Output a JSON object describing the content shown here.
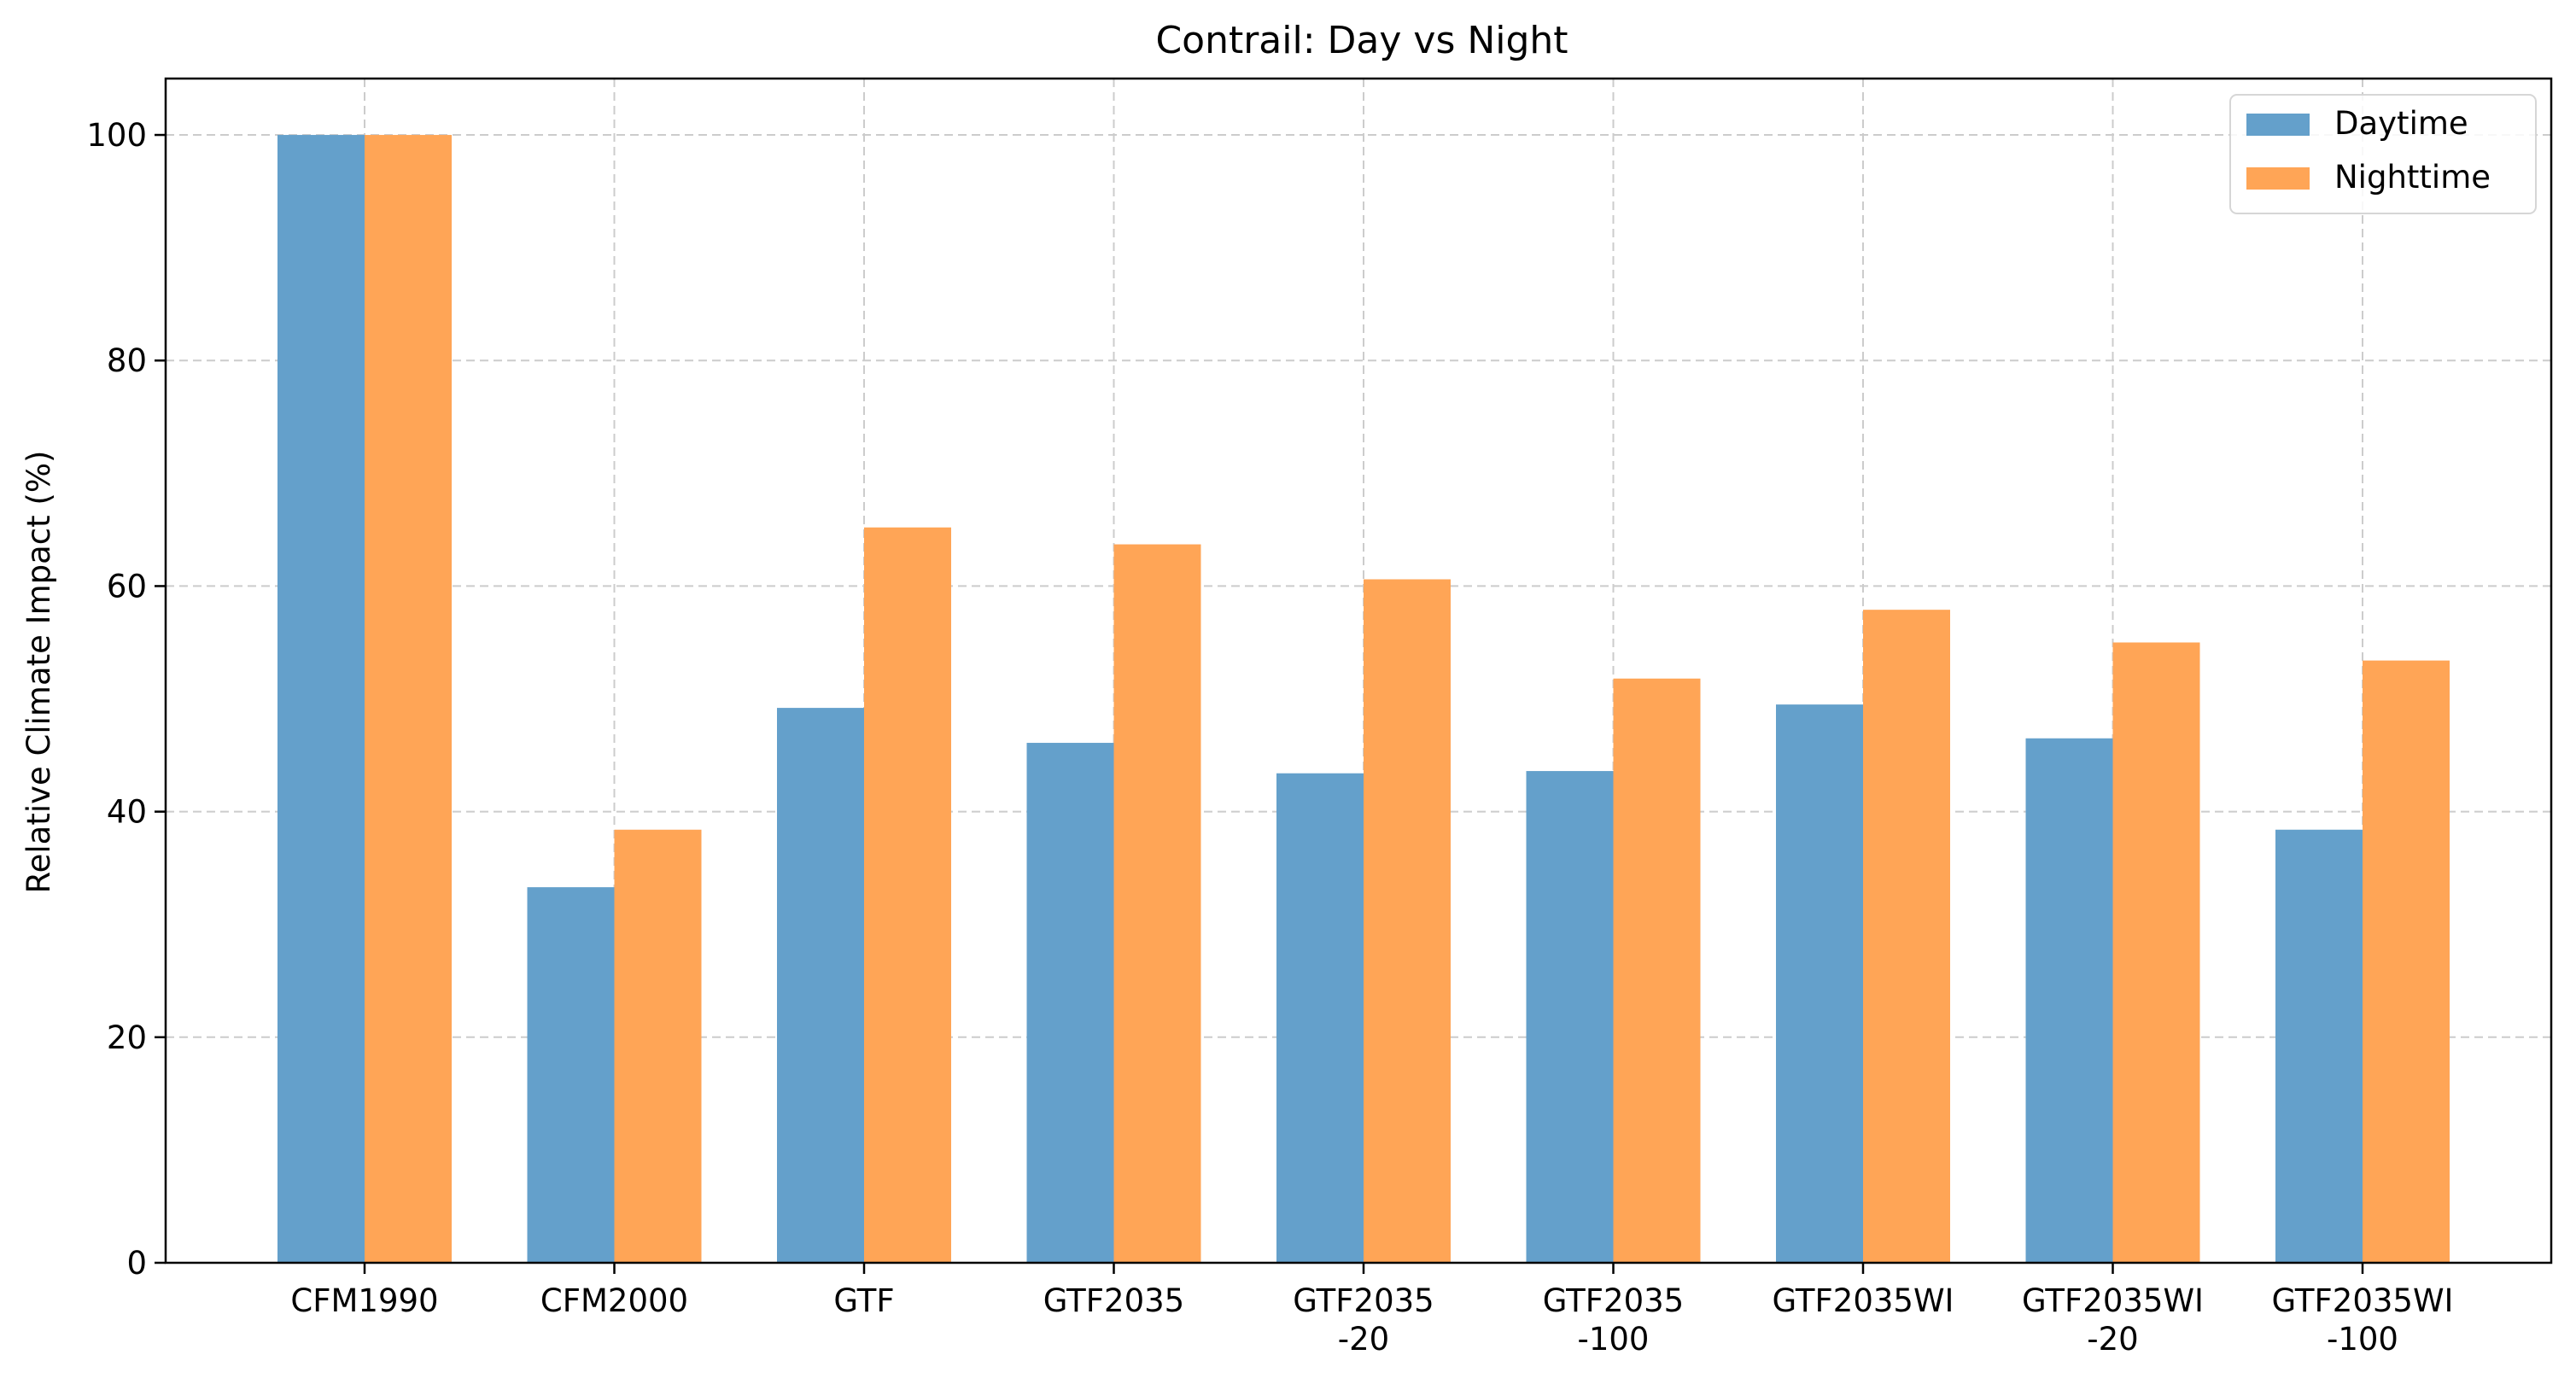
{
  "chart_data": {
    "type": "bar",
    "title": "Contrail: Day vs Night",
    "xlabel": "",
    "ylabel": "Relative Climate Impact (%)",
    "ylim": [
      0,
      105
    ],
    "yticks": [
      0,
      20,
      40,
      60,
      80,
      100
    ],
    "ytick_labels": [
      "0",
      "20",
      "40",
      "60",
      "80",
      "100"
    ],
    "grid": true,
    "legend_position": "top-right",
    "categories": [
      [
        "CFM1990"
      ],
      [
        "CFM2000"
      ],
      [
        "GTF"
      ],
      [
        "GTF2035"
      ],
      [
        "GTF2035",
        "-20"
      ],
      [
        "GTF2035",
        "-100"
      ],
      [
        "GTF2035WI"
      ],
      [
        "GTF2035WI",
        "-20"
      ],
      [
        "GTF2035WI",
        "-100"
      ]
    ],
    "series": [
      {
        "name": "Daytime",
        "color": "#64a0cb",
        "values": [
          100.0,
          33.3,
          49.2,
          46.1,
          43.4,
          43.6,
          49.5,
          46.5,
          38.4
        ]
      },
      {
        "name": "Nighttime",
        "color": "#ffa556",
        "values": [
          100.0,
          38.4,
          65.2,
          63.7,
          60.6,
          51.8,
          57.9,
          55.0,
          53.4
        ]
      }
    ]
  }
}
